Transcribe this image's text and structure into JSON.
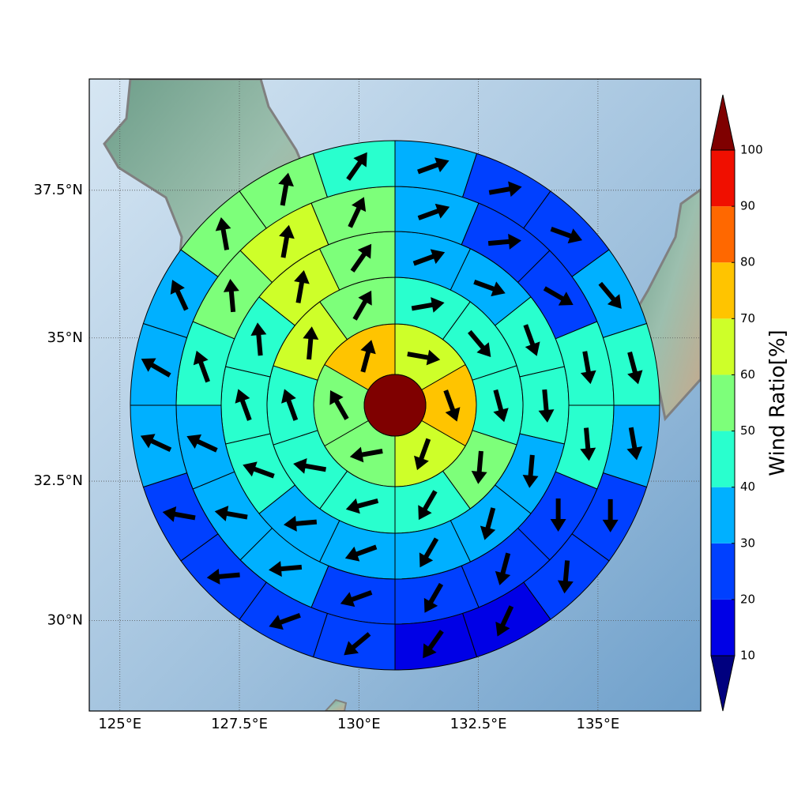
{
  "chart_data": {
    "type": "polar-sector-map",
    "projection": "mercator",
    "xlim": [
      124.36,
      137.15
    ],
    "ylim": [
      28.34,
      39.33
    ],
    "xticks": [
      {
        "value": 125,
        "label": "125°E"
      },
      {
        "value": 127.5,
        "label": "127.5°E"
      },
      {
        "value": 130,
        "label": "130°E"
      },
      {
        "value": 132.5,
        "label": "132.5°E"
      },
      {
        "value": 135,
        "label": "135°E"
      }
    ],
    "yticks": [
      {
        "value": 30,
        "label": "30°N"
      },
      {
        "value": 32.5,
        "label": "32.5°N"
      },
      {
        "value": 35,
        "label": "35°N"
      },
      {
        "value": 37.5,
        "label": "37.5°N"
      }
    ],
    "grid": true,
    "colorbar": {
      "label": "Wind Ratio[%]",
      "levels": [
        10,
        20,
        30,
        40,
        50,
        60,
        70,
        80,
        90,
        100
      ],
      "colors": [
        "#00007f",
        "#0000e6",
        "#0040ff",
        "#00b0ff",
        "#29ffce",
        "#7dff7a",
        "#ceff29",
        "#ffc400",
        "#ff6800",
        "#f00f00",
        "#7f0000"
      ]
    },
    "center_value": 105,
    "rings": [
      {
        "values": [
          65,
          75,
          65,
          55,
          55,
          75
        ],
        "directions": [
          100,
          160,
          200,
          260,
          330,
          15
        ]
      },
      {
        "values": [
          45,
          45,
          45,
          55,
          45,
          45,
          45,
          45,
          65,
          55
        ],
        "directions": [
          80,
          140,
          165,
          185,
          210,
          255,
          280,
          340,
          5,
          30
        ]
      },
      {
        "values": [
          35,
          35,
          45,
          45,
          35,
          35,
          35,
          35,
          35,
          45,
          45,
          45,
          65,
          55
        ],
        "directions": [
          70,
          110,
          160,
          175,
          185,
          195,
          210,
          250,
          265,
          290,
          340,
          355,
          10,
          35
        ]
      },
      {
        "values": [
          35,
          25,
          25,
          45,
          45,
          25,
          25,
          25,
          25,
          35,
          35,
          35,
          45,
          55,
          65,
          55
        ],
        "directions": [
          70,
          85,
          120,
          170,
          175,
          180,
          195,
          210,
          250,
          265,
          280,
          295,
          340,
          355,
          10,
          25
        ]
      },
      {
        "values": [
          35,
          25,
          25,
          35,
          45,
          35,
          25,
          25,
          15,
          15,
          25,
          25,
          25,
          25,
          35,
          35,
          35,
          55,
          55,
          45
        ],
        "directions": [
          70,
          80,
          110,
          140,
          165,
          170,
          180,
          185,
          205,
          215,
          230,
          250,
          265,
          280,
          295,
          300,
          335,
          350,
          10,
          35
        ]
      }
    ]
  }
}
